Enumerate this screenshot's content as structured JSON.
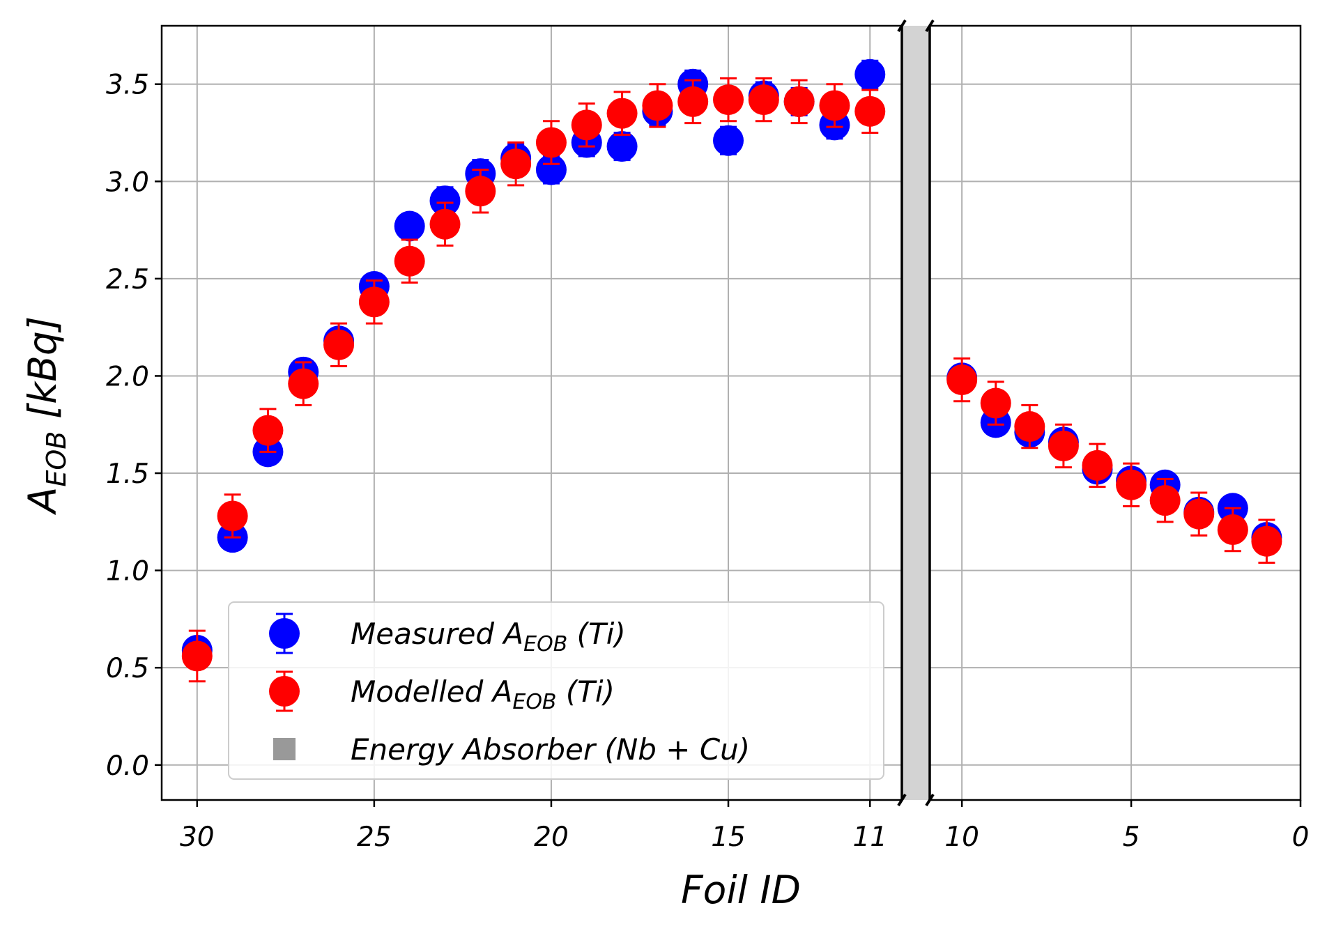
{
  "chart_data": {
    "type": "scatter",
    "title": "",
    "xlabel": "Foil ID",
    "ylabel": "A_EOB [kBq]",
    "ylabel_parts": {
      "base": "A",
      "sub": "EOB",
      "unit": "[kBq]"
    },
    "ylim": [
      -0.18,
      3.8
    ],
    "yticks": [
      0.0,
      0.5,
      1.0,
      1.5,
      2.0,
      2.5,
      3.0,
      3.5
    ],
    "ytick_labels": [
      "0.0",
      "0.5",
      "1.0",
      "1.5",
      "2.0",
      "2.5",
      "3.0",
      "3.5"
    ],
    "grid": true,
    "legend_position": "lower-left",
    "panels": [
      {
        "name": "left",
        "xlim": [
          31,
          10.1
        ],
        "xticks": [
          30,
          25,
          20,
          15,
          11
        ],
        "xtick_labels": [
          "30",
          "25",
          "20",
          "15",
          "11"
        ]
      },
      {
        "name": "right",
        "xlim": [
          10.95,
          0
        ],
        "xticks": [
          10,
          5,
          0
        ],
        "xtick_labels": [
          "10",
          "5",
          "0"
        ]
      }
    ],
    "series": [
      {
        "name": "Measured A_EOB (Ti)",
        "legend_parts": {
          "pre": "Measured A",
          "sub": "EOB",
          "post": " (Ti)"
        },
        "color": "#0000ff",
        "x": [
          30,
          29,
          28,
          27,
          26,
          25,
          24,
          23,
          22,
          21,
          20,
          19,
          18,
          17,
          16,
          15,
          14,
          13,
          12,
          11,
          10,
          9,
          8,
          7,
          6,
          5,
          4,
          3,
          2,
          1
        ],
        "y": [
          0.59,
          1.17,
          1.61,
          2.02,
          2.18,
          2.46,
          2.77,
          2.9,
          3.04,
          3.12,
          3.06,
          3.2,
          3.18,
          3.36,
          3.5,
          3.21,
          3.44,
          3.41,
          3.29,
          3.55,
          1.99,
          1.76,
          1.71,
          1.66,
          1.52,
          1.46,
          1.44,
          1.3,
          1.32,
          1.17
        ],
        "err": [
          0.03,
          0.03,
          0.04,
          0.05,
          0.05,
          0.06,
          0.06,
          0.07,
          0.07,
          0.07,
          0.07,
          0.07,
          0.07,
          0.07,
          0.07,
          0.07,
          0.07,
          0.07,
          0.07,
          0.07,
          0.05,
          0.04,
          0.04,
          0.04,
          0.03,
          0.03,
          0.03,
          0.03,
          0.03,
          0.03
        ]
      },
      {
        "name": "Modelled A_EOB (Ti)",
        "legend_parts": {
          "pre": "Modelled A",
          "sub": "EOB",
          "post": " (Ti)"
        },
        "color": "#ff0000",
        "x": [
          30,
          29,
          28,
          27,
          26,
          25,
          24,
          23,
          22,
          21,
          20,
          19,
          18,
          17,
          16,
          15,
          14,
          13,
          12,
          11,
          10,
          9,
          8,
          7,
          6,
          5,
          4,
          3,
          2,
          1
        ],
        "y": [
          0.56,
          1.28,
          1.72,
          1.96,
          2.16,
          2.38,
          2.59,
          2.78,
          2.95,
          3.09,
          3.2,
          3.29,
          3.35,
          3.39,
          3.41,
          3.42,
          3.42,
          3.41,
          3.39,
          3.36,
          1.98,
          1.86,
          1.74,
          1.64,
          1.54,
          1.44,
          1.36,
          1.29,
          1.21,
          1.15
        ],
        "err": [
          0.13,
          0.11,
          0.11,
          0.11,
          0.11,
          0.11,
          0.11,
          0.11,
          0.11,
          0.11,
          0.11,
          0.11,
          0.11,
          0.11,
          0.11,
          0.11,
          0.11,
          0.11,
          0.11,
          0.11,
          0.11,
          0.11,
          0.11,
          0.11,
          0.11,
          0.11,
          0.11,
          0.11,
          0.11,
          0.11
        ]
      }
    ],
    "absorber": {
      "name": "Energy Absorber (Nb + Cu)",
      "color": "#d3d3d3",
      "legend_color": "#999999"
    }
  }
}
